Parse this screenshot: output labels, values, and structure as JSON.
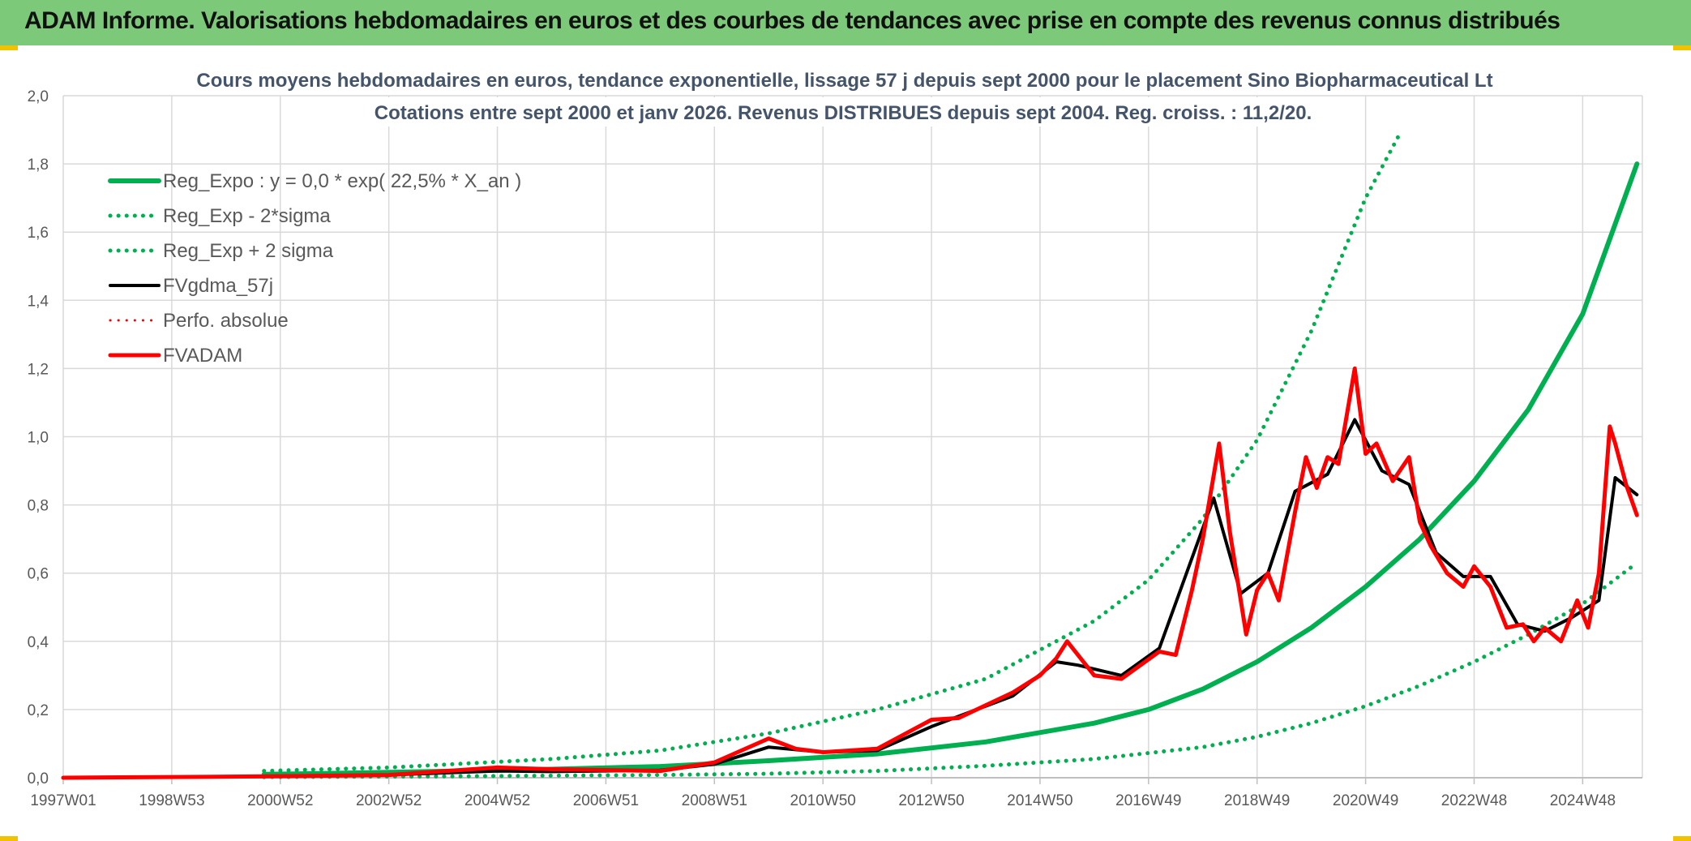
{
  "header": {
    "title": "ADAM Informe. Valorisations hebdomadaires en euros et des courbes de tendances avec prise en compte des revenus connus distribués",
    "background": "#7dc97a"
  },
  "chart_data": {
    "type": "line",
    "title_lines": [
      "Cours moyens hebdomadaires en euros, tendance exponentielle, lissage 57 j depuis sept 2000 pour le placement Sino Biopharmaceutical Lt",
      "Cotations entre sept 2000 et janv 2026. Revenus DISTRIBUES depuis sept 2004. Reg. croiss. : 11,2/20."
    ],
    "xlabel": "",
    "ylabel": "",
    "x_range": [
      1997.0,
      2026.1
    ],
    "ylim": [
      0,
      2.0
    ],
    "y_ticks": [
      "0,0",
      "0,2",
      "0,4",
      "0,6",
      "0,8",
      "1,0",
      "1,2",
      "1,4",
      "1,6",
      "1,8",
      "2,0"
    ],
    "x_ticks": [
      {
        "label": "1997W01",
        "x": 1997.0
      },
      {
        "label": "1998W53",
        "x": 1999.0
      },
      {
        "label": "2000W52",
        "x": 2001.0
      },
      {
        "label": "2002W52",
        "x": 2003.0
      },
      {
        "label": "2004W52",
        "x": 2005.0
      },
      {
        "label": "2006W51",
        "x": 2007.0
      },
      {
        "label": "2008W51",
        "x": 2009.0
      },
      {
        "label": "2010W50",
        "x": 2011.0
      },
      {
        "label": "2012W50",
        "x": 2013.0
      },
      {
        "label": "2014W50",
        "x": 2015.0
      },
      {
        "label": "2016W49",
        "x": 2017.0
      },
      {
        "label": "2018W49",
        "x": 2019.0
      },
      {
        "label": "2020W49",
        "x": 2021.0
      },
      {
        "label": "2022W48",
        "x": 2023.0
      },
      {
        "label": "2024W48",
        "x": 2025.0
      }
    ],
    "grid": true,
    "legend_position": "top-left",
    "series": [
      {
        "name": "Reg_Expo : y = 0,0 * exp( 22,5% *  X_an )",
        "color": "#00b050",
        "style": "solid",
        "width": 6,
        "x": [
          2000.7,
          2002,
          2004,
          2006,
          2008,
          2010,
          2012,
          2014,
          2016,
          2017,
          2018,
          2019,
          2020,
          2021,
          2022,
          2023,
          2024,
          2025,
          2026.0
        ],
        "y": [
          0.01,
          0.013,
          0.019,
          0.025,
          0.033,
          0.05,
          0.07,
          0.105,
          0.16,
          0.2,
          0.26,
          0.34,
          0.44,
          0.56,
          0.7,
          0.87,
          1.08,
          1.36,
          1.8
        ]
      },
      {
        "name": "Reg_Exp - 2*sigma",
        "color": "#00b050",
        "style": "dotted",
        "width": 5,
        "x": [
          2000.7,
          2004,
          2008,
          2010,
          2012,
          2014,
          2016,
          2018,
          2019,
          2020,
          2021,
          2022,
          2023,
          2024,
          2025,
          2026.0
        ],
        "y": [
          0.002,
          0.004,
          0.008,
          0.012,
          0.02,
          0.035,
          0.055,
          0.09,
          0.12,
          0.16,
          0.21,
          0.27,
          0.34,
          0.42,
          0.51,
          0.63
        ]
      },
      {
        "name": "Reg_Exp + 2 sigma",
        "color": "#00b050",
        "style": "dotted",
        "width": 5,
        "x": [
          2000.7,
          2003,
          2006,
          2008,
          2010,
          2012,
          2014,
          2016,
          2017,
          2018,
          2019,
          2020,
          2021,
          2021.6
        ],
        "y": [
          0.02,
          0.03,
          0.055,
          0.08,
          0.13,
          0.2,
          0.29,
          0.46,
          0.58,
          0.76,
          0.99,
          1.31,
          1.7,
          1.88
        ]
      },
      {
        "name": "FVgdma_57j",
        "color": "#000000",
        "style": "solid",
        "width": 4,
        "x": [
          1997.0,
          2000.8,
          2003,
          2005.0,
          2006,
          2008,
          2009,
          2010,
          2011,
          2012,
          2013,
          2013.5,
          2014.5,
          2015.3,
          2015.7,
          2016.5,
          2017.2,
          2017.7,
          2018.2,
          2018.7,
          2019.2,
          2019.7,
          2020.3,
          2020.8,
          2021.3,
          2021.8,
          2022.3,
          2022.8,
          2023.3,
          2023.8,
          2024.3,
          2024.8,
          2025.3,
          2025.6,
          2026.0
        ],
        "y": [
          0.0,
          0.004,
          0.008,
          0.02,
          0.018,
          0.022,
          0.04,
          0.09,
          0.075,
          0.08,
          0.15,
          0.18,
          0.24,
          0.34,
          0.33,
          0.3,
          0.38,
          0.6,
          0.82,
          0.54,
          0.6,
          0.84,
          0.89,
          1.05,
          0.9,
          0.86,
          0.66,
          0.59,
          0.59,
          0.45,
          0.43,
          0.47,
          0.52,
          0.88,
          0.83
        ]
      },
      {
        "name": "Perfo. absolue",
        "color": "#ff0000",
        "style": "dotted",
        "width": 3,
        "x": [],
        "y": []
      },
      {
        "name": "FVADAM",
        "color": "#ff0000",
        "style": "solid",
        "width": 5,
        "x": [
          1997.0,
          2000.8,
          2003,
          2005.0,
          2006,
          2008,
          2009,
          2010,
          2010.5,
          2011,
          2012,
          2013,
          2013.5,
          2014.5,
          2015.0,
          2015.3,
          2015.5,
          2016.0,
          2016.5,
          2017.2,
          2017.5,
          2017.8,
          2018.0,
          2018.3,
          2018.5,
          2018.8,
          2019.0,
          2019.2,
          2019.4,
          2019.7,
          2019.9,
          2020.1,
          2020.3,
          2020.5,
          2020.8,
          2021.0,
          2021.2,
          2021.5,
          2021.8,
          2022.0,
          2022.2,
          2022.5,
          2022.8,
          2023.0,
          2023.3,
          2023.6,
          2023.9,
          2024.1,
          2024.3,
          2024.6,
          2024.9,
          2025.1,
          2025.3,
          2025.5,
          2025.6,
          2025.8,
          2026.0
        ],
        "y": [
          0.0,
          0.004,
          0.008,
          0.03,
          0.025,
          0.02,
          0.045,
          0.115,
          0.085,
          0.075,
          0.085,
          0.17,
          0.175,
          0.25,
          0.3,
          0.35,
          0.4,
          0.3,
          0.29,
          0.37,
          0.36,
          0.55,
          0.7,
          0.98,
          0.72,
          0.42,
          0.55,
          0.6,
          0.52,
          0.78,
          0.94,
          0.85,
          0.94,
          0.92,
          1.2,
          0.95,
          0.98,
          0.87,
          0.94,
          0.75,
          0.68,
          0.6,
          0.56,
          0.62,
          0.56,
          0.44,
          0.45,
          0.4,
          0.44,
          0.4,
          0.52,
          0.44,
          0.6,
          1.03,
          0.98,
          0.86,
          0.77
        ]
      }
    ]
  }
}
